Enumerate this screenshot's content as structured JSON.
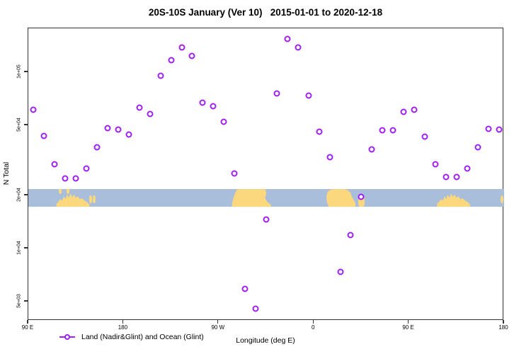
{
  "title": "20S-10S January (Ver 10)   2015-01-01 to 2020-12-18",
  "legend": {
    "label": "Land (Nadir&Glint) and Ocean (Glint)"
  },
  "colors": {
    "marker": "#A020F0",
    "ocean": "#a9bedb",
    "land": "#fbd77e",
    "axis": "#333333"
  },
  "chart_data": {
    "type": "scatter",
    "title": "20S-10S January (Ver 10)   2015-01-01 to 2020-12-18",
    "xlabel": "Longitude (deg E)",
    "ylabel": "N Total",
    "x_axis": {
      "range_deg_east": [
        90,
        540
      ],
      "note_wraps_eastward": "90E to 180, through 90W and 0, back to 180",
      "ticks": [
        {
          "label": "90 E",
          "lon": 90
        },
        {
          "label": "180",
          "lon": 180
        },
        {
          "label": "90 W",
          "lon": 270
        },
        {
          "label": "0",
          "lon": 360
        },
        {
          "label": "90 E",
          "lon": 450
        },
        {
          "label": "180",
          "lon": 540
        }
      ]
    },
    "y_axis": {
      "scale": "log",
      "range": [
        3900,
        177000
      ],
      "ticks": [
        {
          "label": "1e+05",
          "value": 100000
        },
        {
          "label": "5e+04",
          "value": 50000
        },
        {
          "label": "2e+04",
          "value": 20000
        },
        {
          "label": "1e+04",
          "value": 10000
        },
        {
          "label": "5e+03",
          "value": 5000
        }
      ]
    },
    "legend_position": "bottom-left",
    "grid": false,
    "series": [
      {
        "name": "Land (Nadir&Glint) and Ocean (Glint)",
        "marker": "open-circle",
        "color": "#A020F0",
        "points": [
          {
            "lon": 95,
            "n": 61000
          },
          {
            "lon": 105,
            "n": 43500
          },
          {
            "lon": 115,
            "n": 30000
          },
          {
            "lon": 125,
            "n": 25000
          },
          {
            "lon": 135,
            "n": 24900
          },
          {
            "lon": 145,
            "n": 28400
          },
          {
            "lon": 155,
            "n": 37500
          },
          {
            "lon": 165,
            "n": 48000
          },
          {
            "lon": 175,
            "n": 47500
          },
          {
            "lon": 185,
            "n": 44300
          },
          {
            "lon": 195,
            "n": 63000
          },
          {
            "lon": 205,
            "n": 58000
          },
          {
            "lon": 215,
            "n": 95500
          },
          {
            "lon": 225,
            "n": 117000
          },
          {
            "lon": 235,
            "n": 138000
          },
          {
            "lon": 245,
            "n": 124000
          },
          {
            "lon": 255,
            "n": 67000
          },
          {
            "lon": 265,
            "n": 64000
          },
          {
            "lon": 275,
            "n": 52300
          },
          {
            "lon": 285,
            "n": 26700
          },
          {
            "lon": 295,
            "n": 5900
          },
          {
            "lon": 305,
            "n": 4560
          },
          {
            "lon": 315,
            "n": 14600
          },
          {
            "lon": 325,
            "n": 75800
          },
          {
            "lon": 335,
            "n": 155000
          },
          {
            "lon": 345,
            "n": 138000
          },
          {
            "lon": 355,
            "n": 73600
          },
          {
            "lon": 365,
            "n": 46000
          },
          {
            "lon": 375,
            "n": 33000
          },
          {
            "lon": 385,
            "n": 7400
          },
          {
            "lon": 395,
            "n": 11900
          },
          {
            "lon": 405,
            "n": 19600
          },
          {
            "lon": 415,
            "n": 36500
          },
          {
            "lon": 425,
            "n": 47000
          },
          {
            "lon": 435,
            "n": 47000
          },
          {
            "lon": 445,
            "n": 59600
          },
          {
            "lon": 455,
            "n": 61200
          },
          {
            "lon": 465,
            "n": 43000
          },
          {
            "lon": 475,
            "n": 30000
          },
          {
            "lon": 485,
            "n": 25500
          },
          {
            "lon": 495,
            "n": 25500
          },
          {
            "lon": 505,
            "n": 28400
          },
          {
            "lon": 515,
            "n": 37500
          },
          {
            "lon": 525,
            "n": 47700
          },
          {
            "lon": 535,
            "n": 47200
          }
        ]
      }
    ],
    "map_band": {
      "description": "latitude-strip world map drawn as horizontal band",
      "n_top": 21700,
      "n_bottom": 17200,
      "ocean_color": "#a9bedb",
      "land_color": "#fbd77e",
      "land_patches": [
        {
          "name": "indonesia-speck-1",
          "lon0": 118.5,
          "lon1": 121.5,
          "shape": "topspeck"
        },
        {
          "name": "indonesia-speck-2",
          "lon0": 126,
          "lon1": 129,
          "shape": "topspeck"
        },
        {
          "name": "australia-west",
          "lon0": 116,
          "lon1": 148.5,
          "shape": "australia"
        },
        {
          "name": "melanesia-speck-1",
          "lon0": 147.5,
          "lon1": 150,
          "shape": "midspeck"
        },
        {
          "name": "melanesia-speck-2",
          "lon0": 151,
          "lon1": 153.5,
          "shape": "midspeck"
        },
        {
          "name": "south-america",
          "lon0": 282.5,
          "lon1": 319.5,
          "shape": "south-america"
        },
        {
          "name": "africa",
          "lon0": 372,
          "lon1": 399.5,
          "shape": "africa"
        },
        {
          "name": "madagascar",
          "lon0": 402,
          "lon1": 408,
          "shape": "madagascar"
        },
        {
          "name": "australia-east",
          "lon0": 476,
          "lon1": 508.5,
          "shape": "australia"
        },
        {
          "name": "fiji-speck",
          "lon0": 536.5,
          "lon1": 539.5,
          "shape": "midspeck"
        }
      ]
    }
  }
}
